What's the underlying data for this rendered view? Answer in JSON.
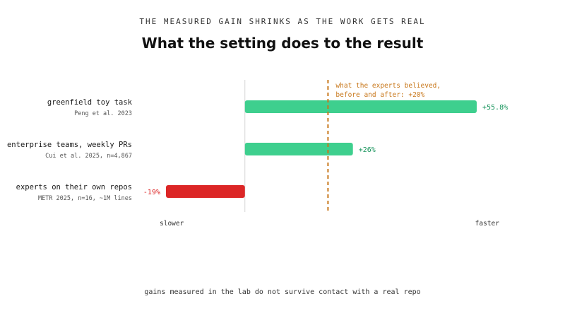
{
  "kicker": "THE MEASURED GAIN SHRINKS AS THE WORK GETS REAL",
  "title": "What the setting does to the result",
  "footer": "gains measured in the lab do not survive contact with a real repo",
  "colors": {
    "positive": "#3ecf8e",
    "negative": "#dc2626",
    "positive_text": "#15935a",
    "negative_text": "#dc2626",
    "reference": "#c8771a",
    "axis": "#d4d4d4",
    "label": "#1a1a1a",
    "sublabel": "#555555"
  },
  "chart_data": {
    "type": "bar",
    "orientation": "horizontal",
    "title": "What the setting does to the result",
    "categories": [
      "greenfield toy task",
      "enterprise teams, weekly PRs",
      "experts on their own repos"
    ],
    "sublabels": [
      "Peng et al. 2023",
      "Cui et al. 2025, n=4,867",
      "METR 2025, n=16, ~1M lines"
    ],
    "values": [
      55.8,
      26,
      -19
    ],
    "value_labels": [
      "+55.8%",
      "+26%",
      "-19%"
    ],
    "xlim": [
      -19,
      55.8
    ],
    "axis_end_labels": {
      "left": "slower",
      "right": "faster"
    },
    "reference_line": {
      "value": 20,
      "label_lines": [
        "what the experts believed,",
        "before and after: +20%"
      ]
    },
    "grid": false,
    "legend": "none"
  }
}
